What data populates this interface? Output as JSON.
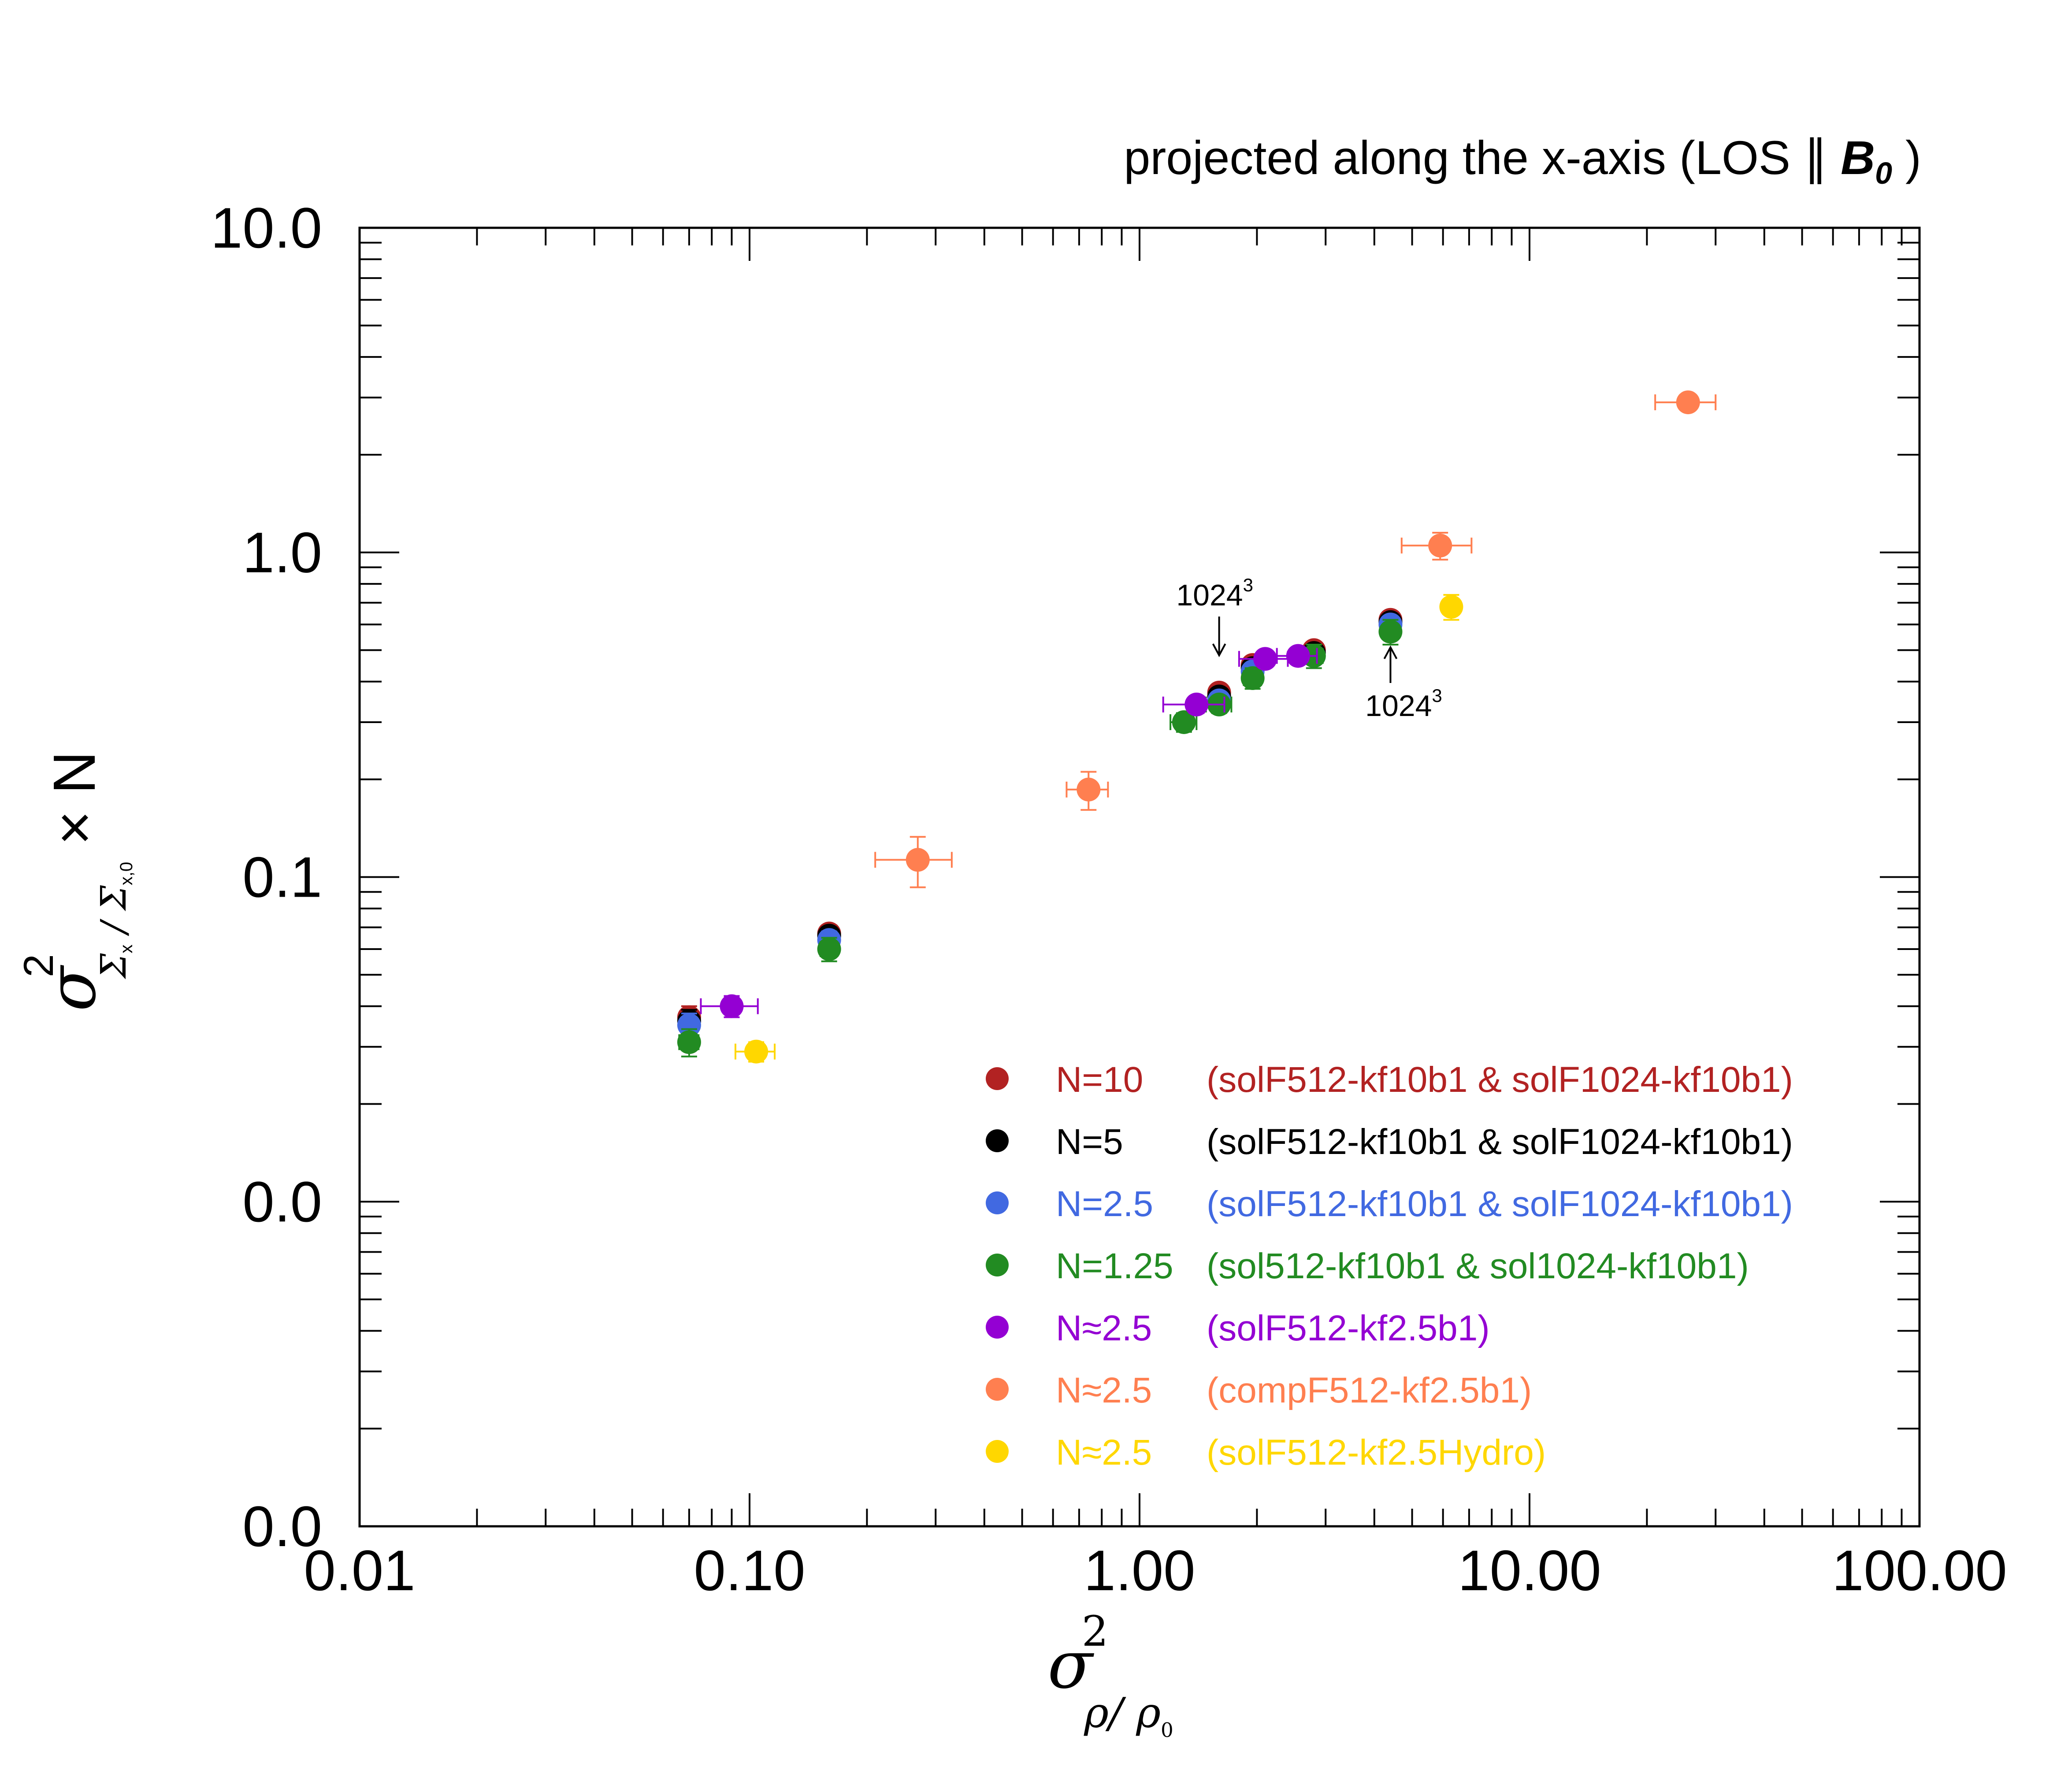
{
  "chart_data": {
    "type": "scatter",
    "title": "projected along the x-axis (LOS ∥ ",
    "title_b": "B",
    "title_b_sub": "0",
    "title_close": " )",
    "x_scale": "log",
    "y_scale": "log",
    "xlim": [
      0.01,
      100
    ],
    "ylim": [
      0.001,
      10
    ],
    "x_ticks": [
      {
        "value": 0.01,
        "label": "0.01"
      },
      {
        "value": 0.1,
        "label": "0.10"
      },
      {
        "value": 1,
        "label": "1.00"
      },
      {
        "value": 10,
        "label": "10.00"
      },
      {
        "value": 100,
        "label": "100.00"
      }
    ],
    "y_ticks": [
      {
        "value": 0.001,
        "label": "0.0"
      },
      {
        "value": 0.01,
        "label": "0.0"
      },
      {
        "value": 0.1,
        "label": "0.1"
      },
      {
        "value": 1,
        "label": "1.0"
      },
      {
        "value": 10,
        "label": "10.0"
      }
    ],
    "xlabel": {
      "main": "σ",
      "sup": "2",
      "sub": "ρ/ ρ",
      "subsub": "0"
    },
    "ylabel": {
      "main": "σ",
      "sup": "2",
      "sub": "Σ",
      "subsub_x": "x",
      "sub2": " / Σ",
      "subsub2": "x,0",
      "suffix": " × N"
    },
    "grid": false,
    "legend_position": "bottom-right",
    "series": [
      {
        "name": "N=10",
        "label": "(solF512-kf10b1 & solF1024-kf10b1)",
        "color": "#b22222",
        "points": [
          [
            0.07,
            0.037,
            0,
            0.003
          ],
          [
            0.16,
            0.067,
            0,
            0.004
          ],
          [
            1.6,
            0.37,
            0,
            0.02
          ],
          [
            1.95,
            0.45,
            0,
            0.02
          ],
          [
            2.8,
            0.5,
            0,
            0.02
          ],
          [
            4.4,
            0.62,
            0,
            0.03
          ]
        ]
      },
      {
        "name": "N=5",
        "label": "(solF512-kf10b1 & solF1024-kf10b1)",
        "color": "#000000",
        "points": [
          [
            0.07,
            0.036,
            0,
            0.003
          ],
          [
            0.16,
            0.066,
            0,
            0.004
          ],
          [
            1.6,
            0.36,
            0,
            0.02
          ],
          [
            1.95,
            0.44,
            0,
            0.02
          ],
          [
            2.8,
            0.49,
            0,
            0.02
          ],
          [
            4.4,
            0.61,
            0,
            0.03
          ]
        ]
      },
      {
        "name": "N=2.5",
        "label": "(solF512-kf10b1 & solF1024-kf10b1)",
        "color": "#4169e1",
        "points": [
          [
            0.07,
            0.035,
            0,
            0.003
          ],
          [
            0.16,
            0.064,
            0,
            0.004
          ],
          [
            1.6,
            0.35,
            0,
            0.02
          ],
          [
            1.95,
            0.43,
            0,
            0.02
          ],
          [
            2.8,
            0.48,
            0,
            0.02
          ],
          [
            4.4,
            0.6,
            0,
            0.03
          ]
        ]
      },
      {
        "name": "N=1.25",
        "label": "(sol512-kf10b1 & sol1024-kf10b1)",
        "color": "#228b22",
        "points": [
          [
            0.07,
            0.031,
            0.004,
            0.003
          ],
          [
            0.16,
            0.06,
            0.008,
            0.005
          ],
          [
            1.3,
            0.3,
            0.1,
            0.02
          ],
          [
            1.6,
            0.34,
            0.12,
            0.02
          ],
          [
            1.95,
            0.41,
            0.1,
            0.03
          ],
          [
            2.8,
            0.48,
            0.15,
            0.04
          ],
          [
            4.4,
            0.57,
            0.2,
            0.05
          ]
        ]
      },
      {
        "name": "N≈2.5",
        "label": "(solF512-kf2.5b1)",
        "color": "#9400d3",
        "points": [
          [
            0.09,
            0.04,
            0.015,
            0.003
          ],
          [
            1.4,
            0.34,
            0.25,
            0.02
          ],
          [
            2.1,
            0.47,
            0.3,
            0.02
          ],
          [
            2.55,
            0.48,
            0.3,
            0.02
          ]
        ]
      },
      {
        "name": "N≈2.5",
        "label": "(compF512-kf2.5b1)",
        "color": "#ff7f50",
        "points": [
          [
            0.27,
            0.113,
            0.06,
            0.02
          ],
          [
            0.74,
            0.186,
            0.09,
            0.025
          ],
          [
            5.9,
            1.05,
            1.2,
            0.1
          ],
          [
            25.5,
            2.9,
            4.5,
            0.15
          ]
        ]
      },
      {
        "name": "N≈2.5",
        "label": "(solF512-kf2.5Hydro)",
        "color": "#ffd700",
        "points": [
          [
            0.104,
            0.029,
            0.012,
            0.002
          ],
          [
            6.3,
            0.68,
            0.3,
            0.06
          ]
        ]
      }
    ],
    "annotations": [
      {
        "text": "1024",
        "sup": "3",
        "x": 1.6,
        "y": 0.45,
        "direction": "down"
      },
      {
        "text": "1024",
        "sup": "3",
        "x": 4.4,
        "y": 0.55,
        "direction": "up"
      }
    ]
  }
}
